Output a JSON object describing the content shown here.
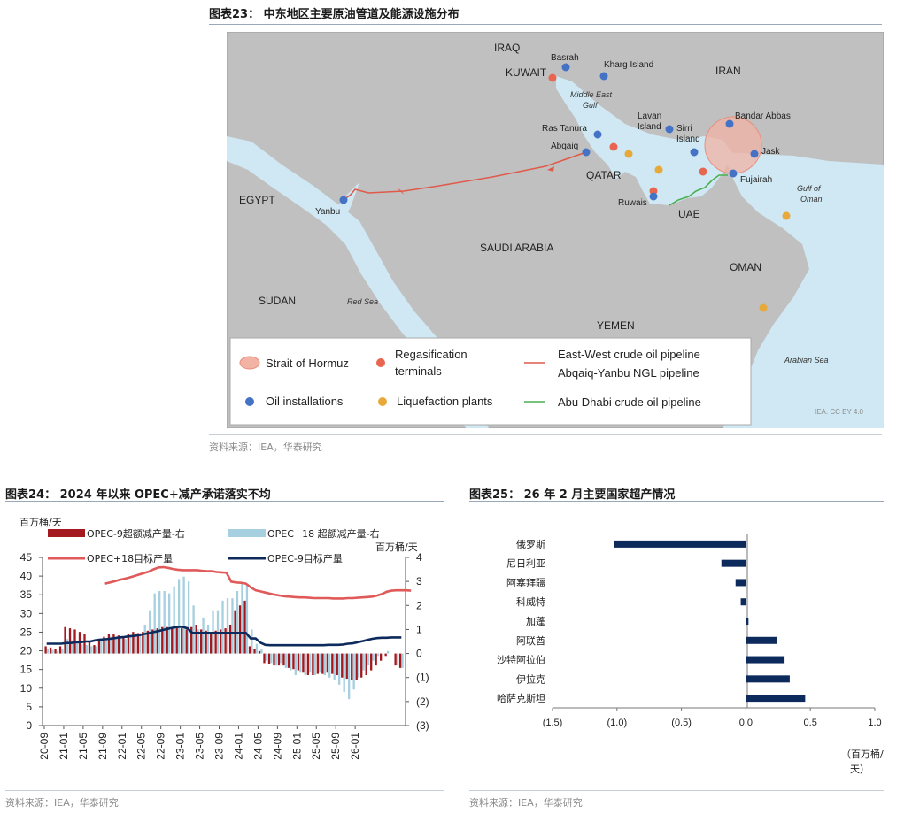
{
  "fig23": {
    "title": "图表23： 中东地区主要原油管道及能源设施分布",
    "source": "资料来源：IEA，华泰研究",
    "credit": "IEA. CC BY 4.0",
    "countries": {
      "iraq": "IRAQ",
      "kuwait": "KUWAIT",
      "iran": "IRAN",
      "qatar": "QATAR",
      "egypt": "EGYPT",
      "saudi": "SAUDI ARABIA",
      "uae": "UAE",
      "oman": "OMAN",
      "sudan": "SUDAN",
      "yemen": "YEMEN"
    },
    "seas": {
      "gulf_line1": "Middle East",
      "gulf_line2": "Gulf",
      "oman_gulf_line1": "Gulf of",
      "oman_gulf_line2": "Oman",
      "red_sea": "Red Sea",
      "arabian_sea": "Arabian Sea"
    },
    "places": {
      "basrah": "Basrah",
      "kharg": "Kharg Island",
      "lavan_line1": "Lavan",
      "lavan_line2": "Island",
      "sirri_line1": "Sirri",
      "sirri_line2": "Island",
      "bandar": "Bandar Abbas",
      "jask": "Jask",
      "ras_tanura": "Ras Tanura",
      "abqaiq": "Abqaiq",
      "fujairah": "Fujairah",
      "ruwais": "Ruwais",
      "yanbu": "Yanbu"
    },
    "legend": {
      "hormuz": "Strait of Hormuz",
      "regas_line1": "Regasification",
      "regas_line2": "terminals",
      "oil": "Oil installations",
      "liquef": "Liquefaction plants",
      "pipe1_line1": "East-West crude oil pipeline",
      "pipe1_line2": "Abqaiq-Yanbu NGL pipeline",
      "pipe2": "Abu Dhabi crude oil pipeline"
    },
    "colors": {
      "oil": "#4472c4",
      "regas": "#e8664f",
      "liquef": "#e6a93a",
      "pipe_red": "#e05a4a",
      "pipe_green": "#4caf50",
      "hormuz": "#f2b3a4"
    }
  },
  "fig24": {
    "title": "图表24： 2024 年以来 OPEC+减产承诺落实不均",
    "source": "资料来源：IEA，华泰研究",
    "chart_data": {
      "type": "bar",
      "left_unit": "百万桶/天",
      "right_unit": "百万桶/天",
      "left_ticks": [
        "45",
        "40",
        "35",
        "30",
        "25",
        "20",
        "15",
        "10",
        "5",
        "0"
      ],
      "right_ticks": [
        "4",
        "3",
        "2",
        "1",
        "0",
        "(1)",
        "(2)",
        "(3)"
      ],
      "x_ticks": [
        "20-09",
        "21-01",
        "21-05",
        "21-09",
        "22-01",
        "22-05",
        "22-09",
        "23-01",
        "23-05",
        "23-09",
        "24-01",
        "24-05",
        "24-09",
        "25-01",
        "25-05",
        "25-09",
        "26-01"
      ],
      "left_range": [
        0,
        45
      ],
      "right_range": [
        -3,
        4
      ],
      "legend": [
        "OPEC-9超额减产量-右",
        "OPEC+18 超额减产量-右",
        "OPEC+18目标产量",
        "OPEC-9目标产量"
      ],
      "colors": {
        "opec9_bar": "#a3191f",
        "opec18_bar": "#a6cfe0",
        "opec18_line": "#e05a5a",
        "opec9_line": "#0d2a5c"
      },
      "series": [
        {
          "name": "OPEC-9超额减产量-右",
          "axis": "right",
          "values": [
            0.3,
            0.25,
            0.2,
            0.3,
            1.1,
            1.05,
            1.0,
            0.9,
            0.8,
            0.5,
            0.35,
            0.6,
            0.7,
            0.8,
            0.8,
            0.75,
            0.7,
            0.8,
            0.9,
            0.85,
            0.9,
            0.95,
            1.0,
            1.05,
            1.1,
            1.1,
            1.05,
            1.1,
            1.05,
            1.0,
            1.1,
            1.2,
            1.0,
            0.95,
            0.9,
            0.95,
            1.0,
            1.05,
            1.2,
            1.8,
            2.0,
            2.2,
            0.3,
            0.2,
            0.1,
            -0.4,
            -0.45,
            -0.5,
            -0.5,
            -0.5,
            -0.6,
            -0.65,
            -0.7,
            -0.8,
            -0.9,
            -0.9,
            -0.85,
            -0.85,
            -0.8,
            -0.85,
            -0.9,
            -1.0,
            -1.05,
            -1.1,
            -1.1,
            -1.0,
            -0.9,
            -0.7,
            -0.5,
            -0.3,
            -0.1,
            0.0,
            -0.5,
            -0.6
          ]
        },
        {
          "name": "OPEC+18 超额减产量-右",
          "axis": "right",
          "values": [
            0.2,
            0.15,
            0.1,
            0.2,
            0.6,
            0.55,
            0.5,
            0.4,
            0.35,
            0.3,
            0.3,
            0.5,
            0.6,
            0.7,
            0.7,
            0.65,
            0.6,
            0.7,
            0.8,
            0.85,
            1.2,
            1.8,
            2.5,
            2.6,
            2.6,
            2.5,
            2.8,
            3.1,
            3.2,
            3.0,
            2.0,
            1.0,
            1.5,
            1.2,
            1.8,
            1.8,
            2.2,
            2.3,
            2.3,
            2.6,
            2.9,
            2.9,
            1.0,
            0.4,
            0.2,
            -0.3,
            -0.4,
            -0.5,
            -0.4,
            -0.6,
            -0.7,
            -0.9,
            -0.8,
            -0.9,
            -0.8,
            -0.9,
            -0.8,
            -0.9,
            -1.0,
            -1.1,
            -1.3,
            -1.6,
            -1.9,
            -1.5,
            -1.0,
            -0.7,
            -0.5,
            -0.3,
            -0.1,
            0.0,
            0.1,
            0.0,
            -0.5,
            -0.6
          ]
        },
        {
          "name": "OPEC+18目标产量",
          "axis": "left",
          "x_start_index": 12,
          "values": [
            38.0,
            38.3,
            38.6,
            39.0,
            39.3,
            39.6,
            40.0,
            40.4,
            40.8,
            41.2,
            41.8,
            42.3,
            42.4,
            42.2,
            41.9,
            41.7,
            41.6,
            41.6,
            41.6,
            41.6,
            41.4,
            41.3,
            41.3,
            41.1,
            41.0,
            40.9,
            38.5,
            38.3,
            38.2,
            38.0,
            37.0,
            36.2,
            35.9,
            35.6,
            35.3,
            35.0,
            34.8,
            34.6,
            34.5,
            34.4,
            34.3,
            34.3,
            34.2,
            34.1,
            34.1,
            34.1,
            34.1,
            34.0,
            34.0,
            34.0,
            34.1,
            34.1,
            34.2,
            34.3,
            34.4,
            34.5,
            34.8,
            35.2,
            35.8,
            36.1,
            36.2,
            36.2,
            36.2,
            36.1
          ]
        },
        {
          "name": "OPEC-9目标产量",
          "axis": "left",
          "values": [
            21.9,
            21.9,
            21.9,
            21.9,
            22.1,
            22.1,
            22.3,
            22.3,
            22.5,
            22.5,
            22.8,
            23.0,
            23.1,
            23.2,
            23.4,
            23.6,
            23.7,
            23.9,
            24.0,
            24.2,
            24.5,
            24.7,
            25.0,
            25.3,
            25.6,
            25.9,
            26.2,
            26.4,
            26.4,
            26.0,
            24.8,
            24.8,
            24.8,
            24.8,
            24.8,
            24.8,
            24.8,
            24.8,
            24.8,
            24.8,
            24.8,
            24.8,
            23.3,
            23.3,
            22.2,
            21.6,
            21.5,
            21.5,
            21.5,
            21.5,
            21.5,
            21.5,
            21.5,
            21.5,
            21.5,
            21.5,
            21.5,
            21.5,
            21.6,
            21.6,
            21.6,
            21.7,
            21.9,
            22.0,
            22.3,
            22.6,
            22.9,
            23.2,
            23.4,
            23.5,
            23.5,
            23.6,
            23.6,
            23.6
          ]
        }
      ]
    }
  },
  "fig25": {
    "title": "图表25： 26 年 2 月主要国家超产情况",
    "source": "资料来源：IEA，华泰研究",
    "chart_data": {
      "type": "bar",
      "orientation": "horizontal",
      "categories": [
        "俄罗斯",
        "尼日利亚",
        "阿塞拜疆",
        "科威特",
        "加蓬",
        "阿联酋",
        "沙特阿拉伯",
        "伊拉克",
        "哈萨克斯坦"
      ],
      "values": [
        -1.02,
        -0.19,
        -0.08,
        -0.04,
        0.02,
        0.24,
        0.3,
        0.34,
        0.46
      ],
      "x_ticks": [
        "(1.5)",
        "(1.0)",
        "(0.5)",
        "0.0",
        "0.5",
        "1.0"
      ],
      "x_range": [
        -1.5,
        1.0
      ],
      "unit_line1": "（百万桶/",
      "unit_line2": "天）",
      "color": "#0d2a5c"
    }
  }
}
